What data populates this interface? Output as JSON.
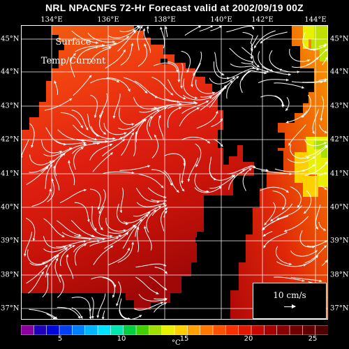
{
  "title": "NRL NPACNFS 72-Hr Forecast valid at 2002/09/19 00Z",
  "map_label": {
    "line1": "Surface",
    "line2": "Temp/Current"
  },
  "lon_labels": [
    "134°E",
    "136°E",
    "138°E",
    "140°E",
    "142°E",
    "144°E"
  ],
  "lat_labels": [
    "45°N",
    "44°N",
    "43°N",
    "42°N",
    "41°N",
    "40°N",
    "39°N",
    "38°N",
    "37°N"
  ],
  "vector_legend": {
    "label": "10 cm/s"
  },
  "colorbar": {
    "ticks": [
      "5",
      "10",
      "15",
      "20",
      "25"
    ],
    "unit": "°C",
    "colors": [
      "#8c00a0",
      "#2000b8",
      "#0008d8",
      "#0040f0",
      "#0080ff",
      "#00b4ff",
      "#00e0ff",
      "#00e8b0",
      "#00d040",
      "#40d000",
      "#a0e000",
      "#e8f000",
      "#ffd000",
      "#ffa000",
      "#ff7800",
      "#ff5000",
      "#f83000",
      "#e01800",
      "#c80800",
      "#a80000",
      "#880000",
      "#700000",
      "#600000",
      "#500000"
    ]
  }
}
